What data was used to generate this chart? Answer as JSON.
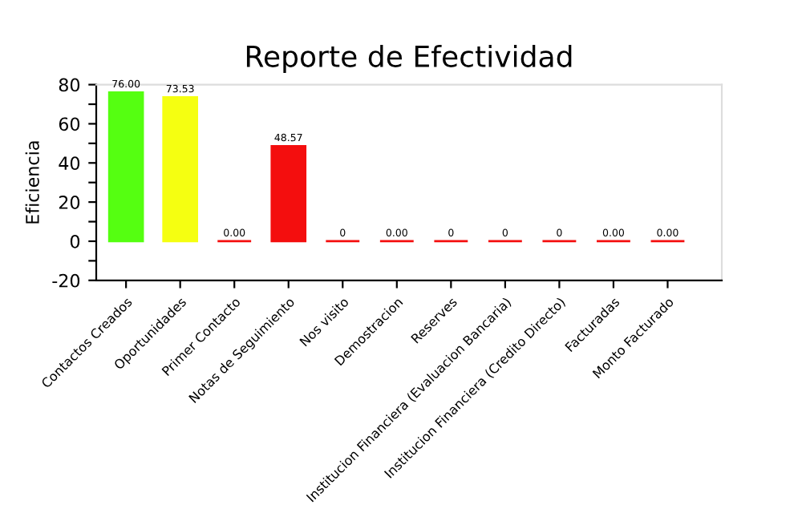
{
  "chart_data": {
    "type": "bar",
    "title": "Reporte de Efectividad",
    "ylabel": "Eficiencia",
    "categories": [
      "Contactos Creados",
      "Oportunidades",
      "Primer Contacto",
      "Notas de Seguimiento",
      "Nos visito",
      "Demostracion",
      "Reserves",
      "Institucion Financiera (Evaluacion Bancaria)",
      "Institucion Financiera (Credito Directo)",
      "Facturadas",
      "Monto Facturado"
    ],
    "values": [
      76,
      73.53,
      0,
      48.57,
      0,
      0,
      0,
      0,
      0,
      0,
      0
    ],
    "value_labels": [
      "76.00",
      "73.53",
      "0.00",
      "48.57",
      "0",
      "0.00",
      "0",
      "0",
      "0",
      "0.00",
      "0.00"
    ],
    "colors": [
      "#55ff11",
      "#f5ff11",
      "#f40e0e",
      "#f40e0e",
      "#f40e0e",
      "#f40e0e",
      "#f40e0e",
      "#f40e0e",
      "#f40e0e",
      "#f40e0e",
      "#f40e0e"
    ],
    "ylim": [
      -20,
      80
    ],
    "yticks": [
      -20,
      {
        "value": -10,
        "label": null
      },
      0,
      {
        "value": 10,
        "label": null
      },
      20,
      {
        "value": 30,
        "label": null
      },
      40,
      {
        "value": 50,
        "label": null
      },
      60,
      {
        "value": 70,
        "label": null
      },
      80
    ],
    "grid": false,
    "legend": false
  }
}
